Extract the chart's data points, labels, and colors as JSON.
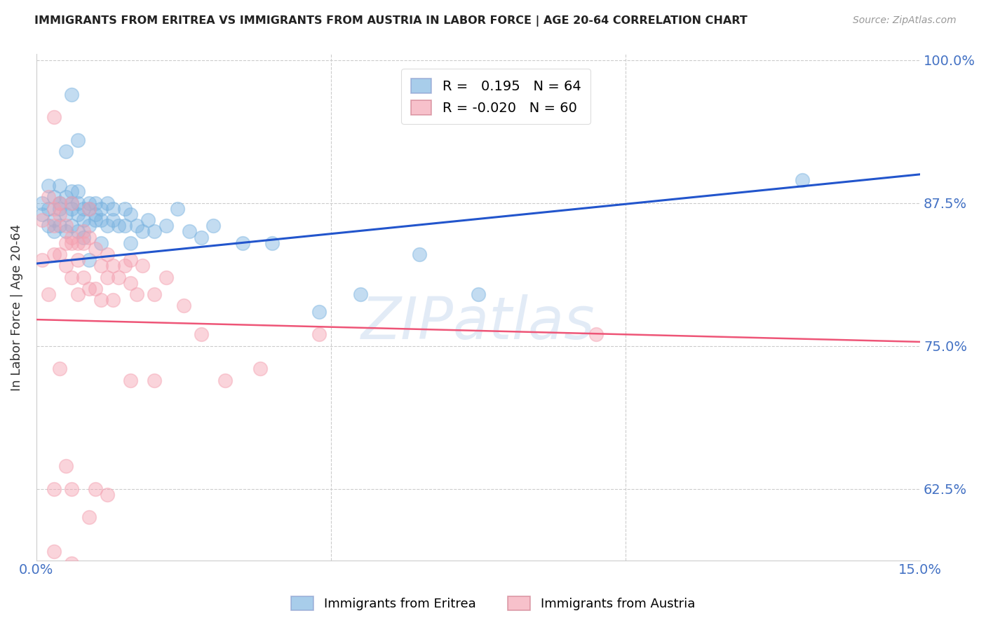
{
  "title": "IMMIGRANTS FROM ERITREA VS IMMIGRANTS FROM AUSTRIA IN LABOR FORCE | AGE 20-64 CORRELATION CHART",
  "source": "Source: ZipAtlas.com",
  "ylabel": "In Labor Force | Age 20-64",
  "xmin": 0.0,
  "xmax": 0.15,
  "ymin": 0.5625,
  "ymax": 1.005,
  "yticks": [
    0.625,
    0.75,
    0.875,
    1.0
  ],
  "ytick_labels": [
    "62.5%",
    "75.0%",
    "87.5%",
    "100.0%"
  ],
  "blue_color": "#7ab3e0",
  "pink_color": "#f4a0b0",
  "line_blue": "#2255cc",
  "line_pink": "#ee5577",
  "blue_R": 0.195,
  "pink_R": -0.02,
  "blue_N": 64,
  "pink_N": 60,
  "blue_intercept": 0.822,
  "blue_slope": 0.52,
  "pink_intercept": 0.773,
  "pink_slope": -0.13,
  "blue_x": [
    0.001,
    0.001,
    0.002,
    0.002,
    0.002,
    0.003,
    0.003,
    0.003,
    0.004,
    0.004,
    0.004,
    0.004,
    0.005,
    0.005,
    0.005,
    0.006,
    0.006,
    0.006,
    0.006,
    0.007,
    0.007,
    0.007,
    0.007,
    0.008,
    0.008,
    0.008,
    0.009,
    0.009,
    0.009,
    0.01,
    0.01,
    0.01,
    0.011,
    0.011,
    0.012,
    0.012,
    0.013,
    0.013,
    0.014,
    0.015,
    0.015,
    0.016,
    0.016,
    0.017,
    0.018,
    0.019,
    0.02,
    0.022,
    0.024,
    0.026,
    0.028,
    0.03,
    0.035,
    0.04,
    0.048,
    0.055,
    0.065,
    0.075,
    0.009,
    0.011,
    0.006,
    0.007,
    0.13,
    0.005
  ],
  "blue_y": [
    0.865,
    0.875,
    0.87,
    0.855,
    0.89,
    0.86,
    0.88,
    0.85,
    0.875,
    0.87,
    0.855,
    0.89,
    0.865,
    0.88,
    0.85,
    0.87,
    0.855,
    0.875,
    0.885,
    0.865,
    0.875,
    0.85,
    0.885,
    0.86,
    0.87,
    0.845,
    0.875,
    0.855,
    0.87,
    0.865,
    0.86,
    0.875,
    0.86,
    0.87,
    0.855,
    0.875,
    0.86,
    0.87,
    0.855,
    0.87,
    0.855,
    0.865,
    0.84,
    0.855,
    0.85,
    0.86,
    0.85,
    0.855,
    0.87,
    0.85,
    0.845,
    0.855,
    0.84,
    0.84,
    0.78,
    0.795,
    0.83,
    0.795,
    0.825,
    0.84,
    0.97,
    0.93,
    0.895,
    0.92
  ],
  "pink_x": [
    0.001,
    0.001,
    0.002,
    0.002,
    0.003,
    0.003,
    0.003,
    0.004,
    0.004,
    0.004,
    0.005,
    0.005,
    0.005,
    0.006,
    0.006,
    0.006,
    0.007,
    0.007,
    0.007,
    0.008,
    0.008,
    0.008,
    0.009,
    0.009,
    0.01,
    0.01,
    0.011,
    0.011,
    0.012,
    0.013,
    0.013,
    0.014,
    0.015,
    0.016,
    0.017,
    0.018,
    0.02,
    0.022,
    0.025,
    0.028,
    0.032,
    0.038,
    0.048,
    0.003,
    0.006,
    0.009,
    0.012,
    0.016,
    0.02,
    0.003,
    0.006,
    0.01,
    0.003,
    0.006,
    0.009,
    0.012,
    0.016,
    0.095,
    0.004,
    0.005
  ],
  "pink_y": [
    0.86,
    0.825,
    0.88,
    0.795,
    0.855,
    0.87,
    0.83,
    0.83,
    0.875,
    0.865,
    0.855,
    0.82,
    0.84,
    0.845,
    0.81,
    0.84,
    0.825,
    0.795,
    0.84,
    0.85,
    0.81,
    0.84,
    0.8,
    0.845,
    0.835,
    0.8,
    0.82,
    0.79,
    0.81,
    0.82,
    0.79,
    0.81,
    0.82,
    0.805,
    0.795,
    0.82,
    0.795,
    0.81,
    0.785,
    0.76,
    0.72,
    0.73,
    0.76,
    0.95,
    0.875,
    0.87,
    0.83,
    0.825,
    0.72,
    0.625,
    0.625,
    0.625,
    0.57,
    0.56,
    0.6,
    0.62,
    0.72,
    0.76,
    0.73,
    0.645
  ],
  "watermark": "ZIPatlas",
  "title_color": "#222222",
  "axis_color": "#4472c4",
  "grid_color": "#cccccc",
  "background_color": "#ffffff"
}
